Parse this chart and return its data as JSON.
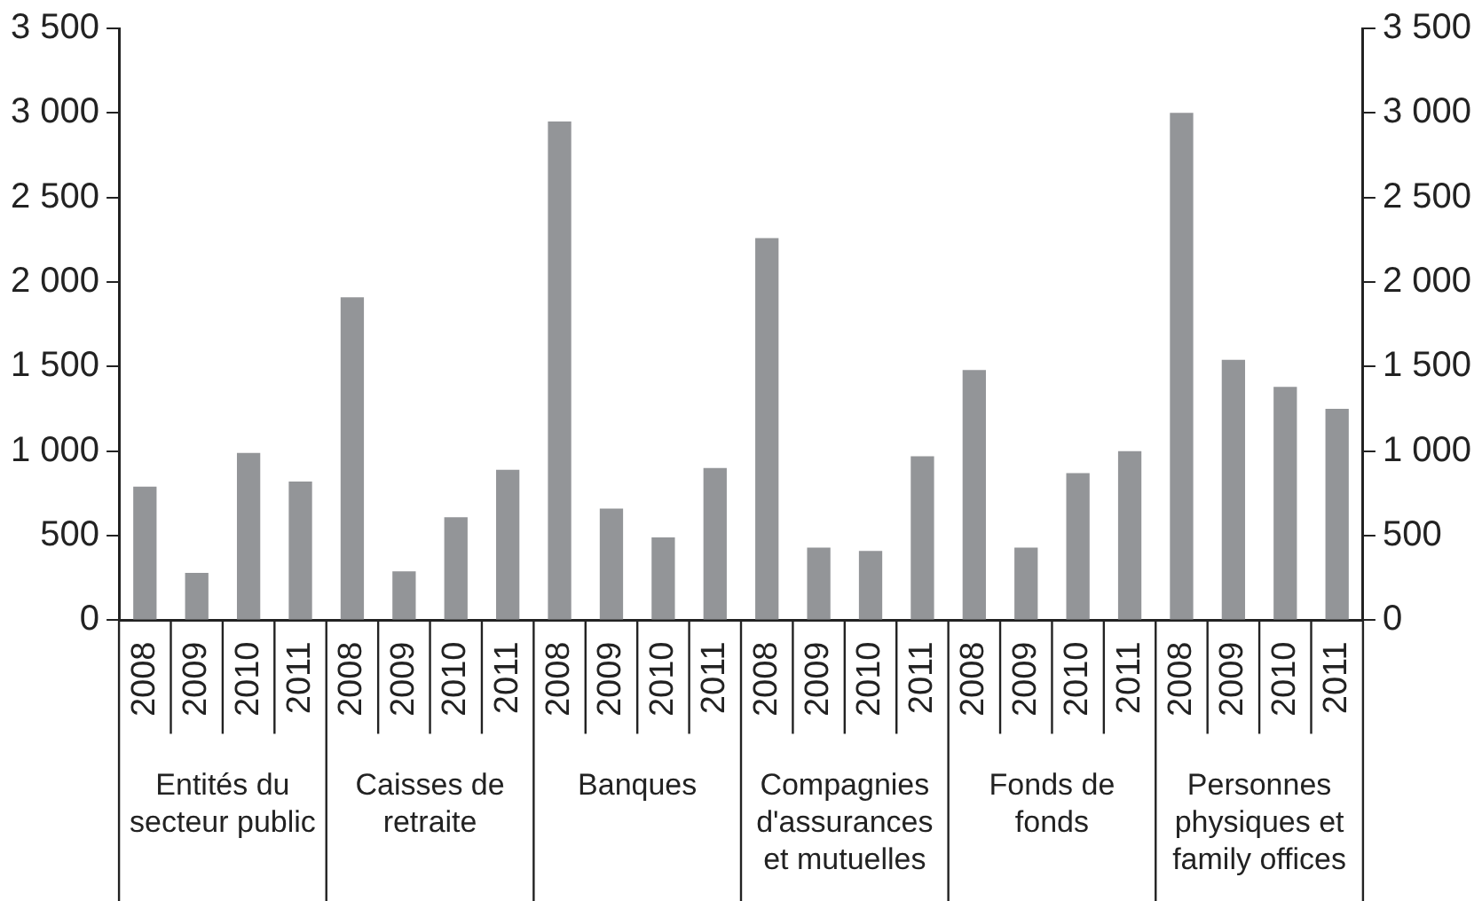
{
  "chart_data": {
    "type": "bar",
    "categories": [
      "2008",
      "2009",
      "2010",
      "2011",
      "2008",
      "2009",
      "2010",
      "2011",
      "2008",
      "2009",
      "2010",
      "2011",
      "2008",
      "2009",
      "2010",
      "2011",
      "2008",
      "2009",
      "2010",
      "2011",
      "2008",
      "2009",
      "2010",
      "2011"
    ],
    "values": [
      790,
      280,
      990,
      820,
      1910,
      290,
      610,
      890,
      2950,
      660,
      490,
      900,
      2260,
      430,
      410,
      970,
      1480,
      430,
      870,
      1000,
      3000,
      1540,
      1380,
      1250
    ],
    "color": "#939598",
    "ylim": [
      0,
      3500
    ],
    "yticks": [
      0,
      500,
      {
        "value": 1000,
        "label": "1 000"
      },
      {
        "value": 1500,
        "label": "1 500"
      },
      {
        "value": 2000,
        "label": "2 000"
      },
      {
        "value": 2500,
        "label": "2 500"
      },
      {
        "value": 3000,
        "label": "3 000"
      },
      {
        "value": 3500,
        "label": "3 500"
      }
    ],
    "y2lim": [
      0,
      3500
    ],
    "y2ticks": [
      0,
      500,
      {
        "value": 1000,
        "label": "1 000"
      },
      {
        "value": 1500,
        "label": "1 500"
      },
      {
        "value": 2000,
        "label": "2 000"
      },
      {
        "value": 2500,
        "label": "2 500"
      },
      {
        "value": 3000,
        "label": "3 000"
      },
      {
        "value": 3500,
        "label": "3 500"
      }
    ],
    "annotations": [
      "Entités du secteur public",
      "Caisses de retraite",
      "Banques",
      "Compagnies d'assurances et mutuelles",
      "Fonds de fonds",
      "Personnes physiques et family offices"
    ],
    "grid": false
  }
}
